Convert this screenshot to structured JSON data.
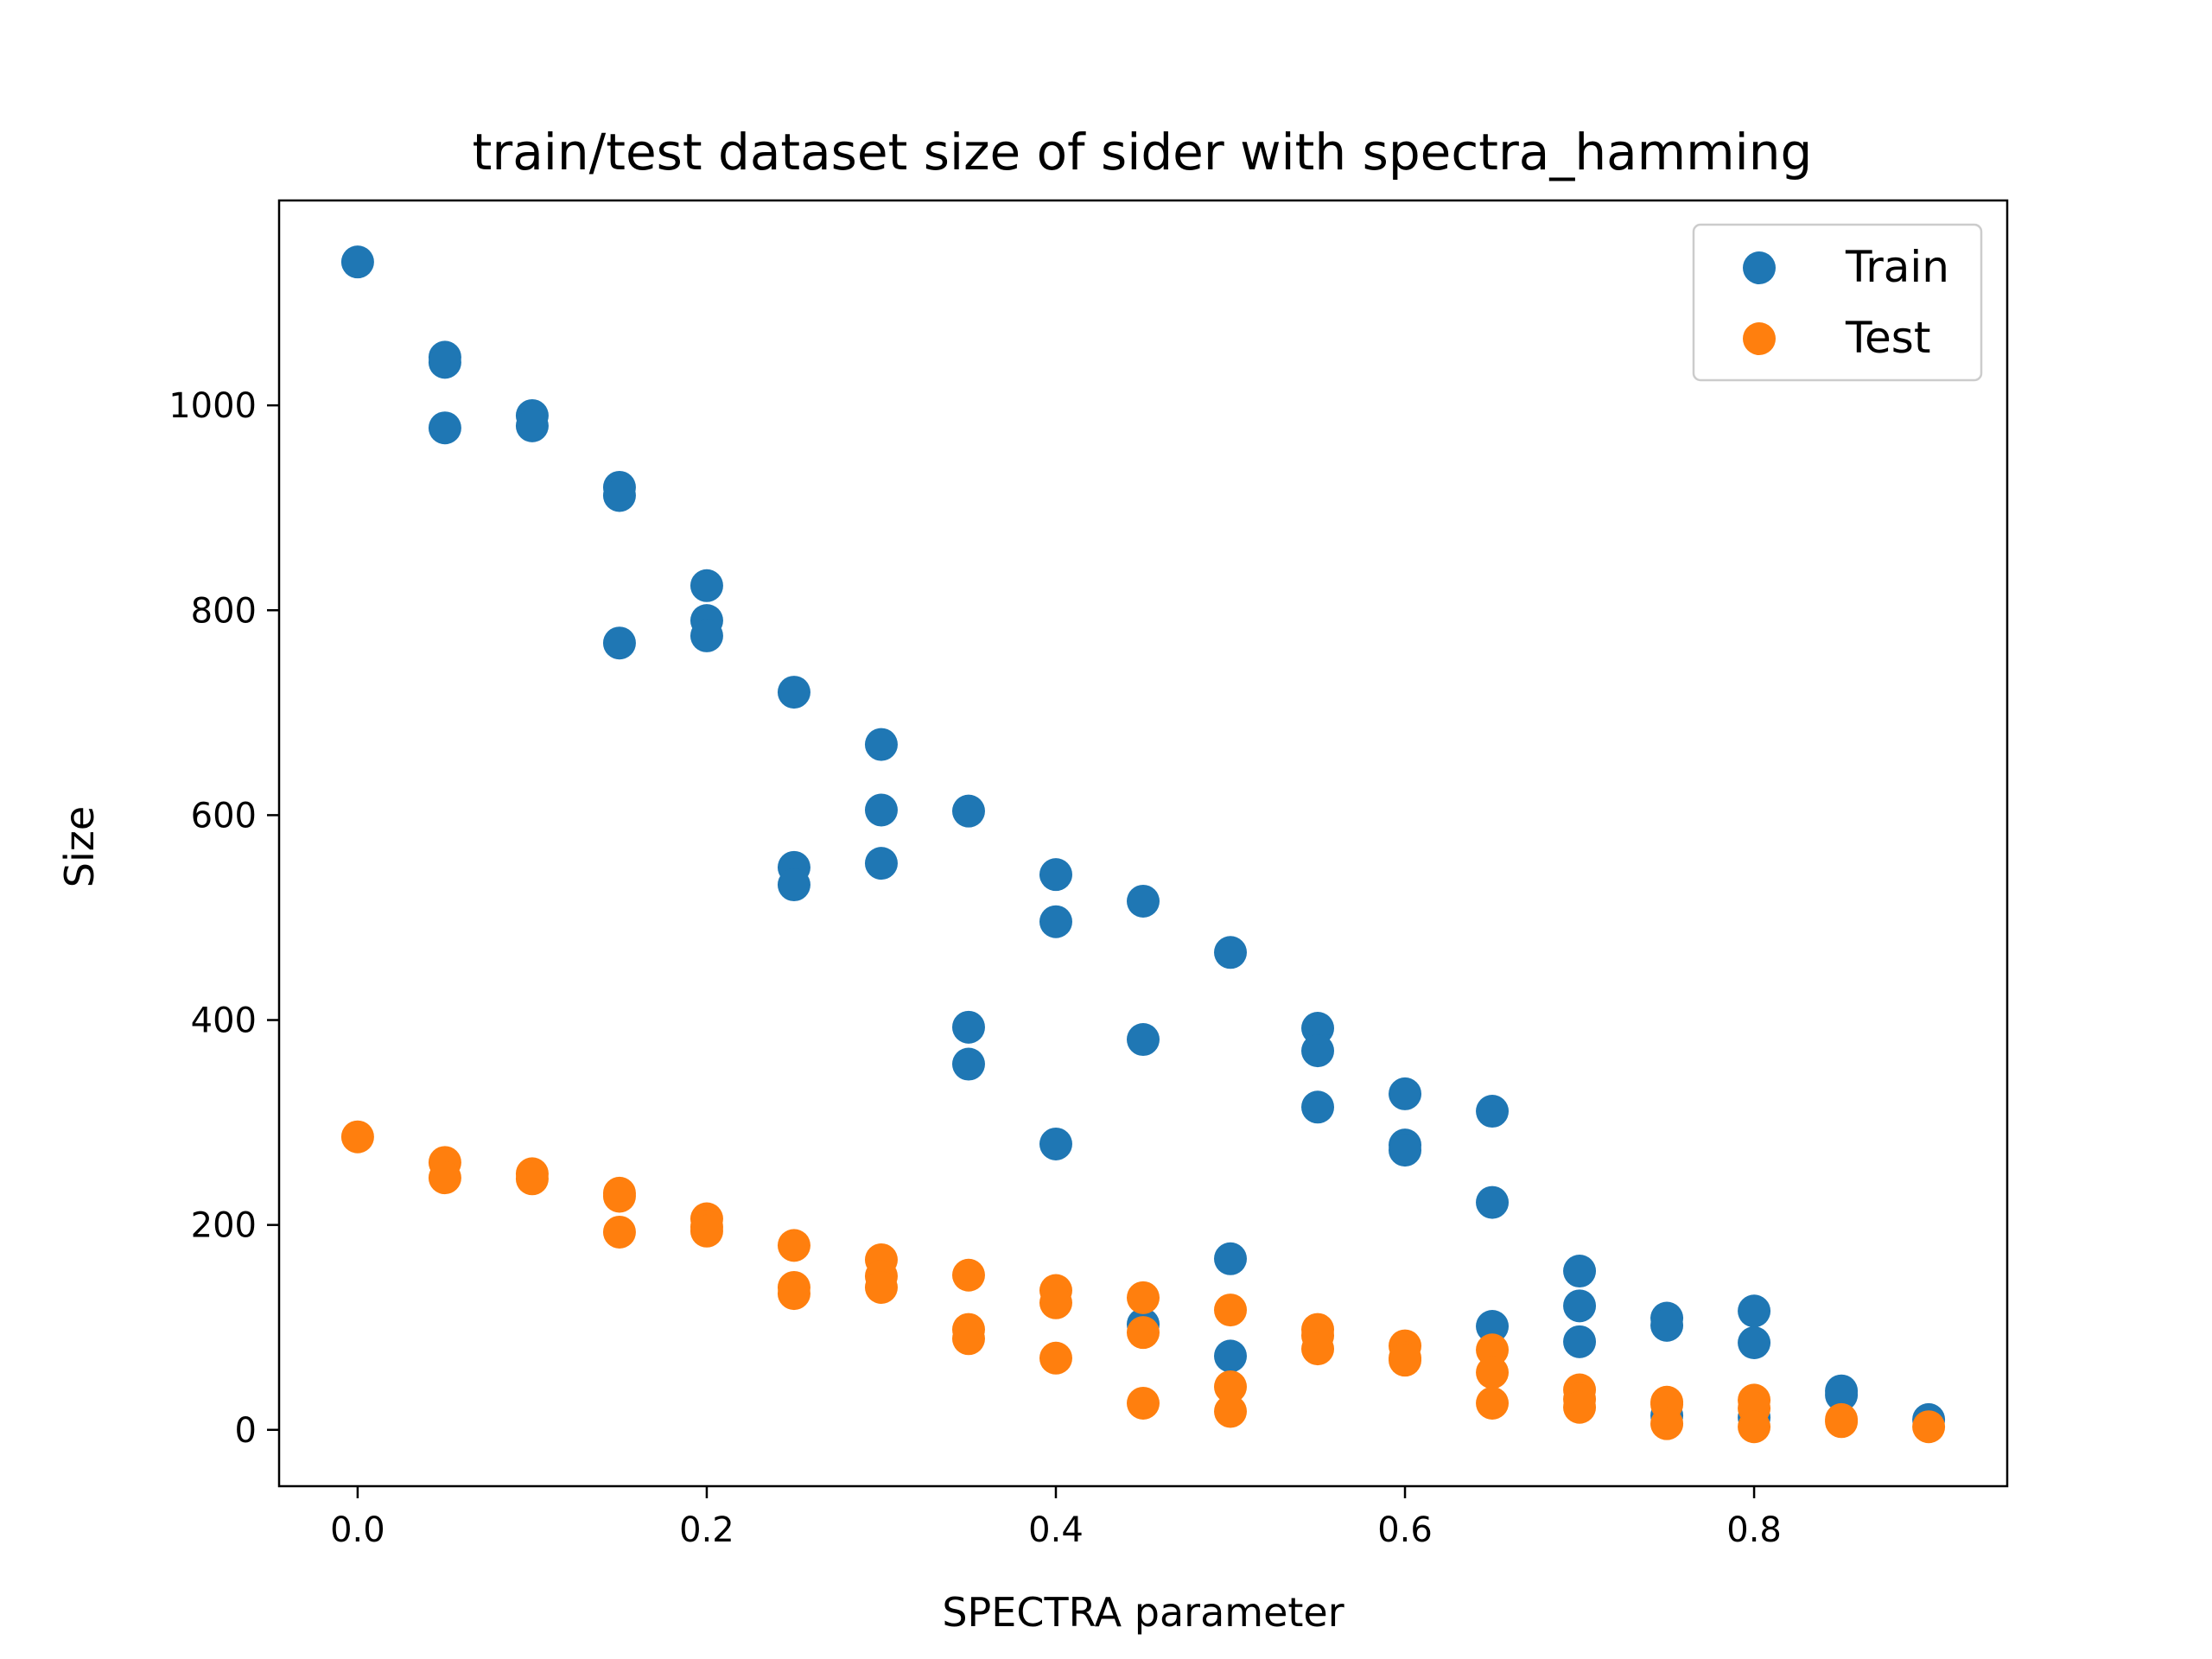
{
  "chart_data": {
    "type": "scatter",
    "title": "train/test dataset size of sider with spectra_hamming",
    "xlabel": "SPECTRA parameter",
    "ylabel": "Size",
    "xlim": [
      -0.045,
      0.945
    ],
    "ylim": [
      -55,
      1200
    ],
    "xticks": [
      0.0,
      0.2,
      0.4,
      0.6,
      0.8
    ],
    "xtick_labels": [
      "0.0",
      "0.2",
      "0.4",
      "0.6",
      "0.8"
    ],
    "yticks": [
      0,
      200,
      400,
      600,
      800,
      1000
    ],
    "ytick_labels": [
      "0",
      "200",
      "400",
      "600",
      "800",
      "1000"
    ],
    "grid": false,
    "legend": {
      "position": "top-right",
      "entries": [
        "Train",
        "Test"
      ]
    },
    "series": [
      {
        "name": "Train",
        "color": "#1f77b4",
        "points": [
          [
            0.0,
            1140
          ],
          [
            0.05,
            1047
          ],
          [
            0.05,
            1042
          ],
          [
            0.05,
            978
          ],
          [
            0.1,
            990
          ],
          [
            0.1,
            980
          ],
          [
            0.15,
            920
          ],
          [
            0.15,
            912
          ],
          [
            0.15,
            768
          ],
          [
            0.2,
            824
          ],
          [
            0.2,
            790
          ],
          [
            0.2,
            775
          ],
          [
            0.25,
            720
          ],
          [
            0.25,
            549
          ],
          [
            0.25,
            532
          ],
          [
            0.3,
            669
          ],
          [
            0.3,
            605
          ],
          [
            0.3,
            553
          ],
          [
            0.35,
            604
          ],
          [
            0.35,
            393
          ],
          [
            0.35,
            357
          ],
          [
            0.4,
            542
          ],
          [
            0.4,
            496
          ],
          [
            0.4,
            279
          ],
          [
            0.45,
            516
          ],
          [
            0.45,
            381
          ],
          [
            0.45,
            103
          ],
          [
            0.5,
            466
          ],
          [
            0.5,
            167
          ],
          [
            0.5,
            72
          ],
          [
            0.55,
            392
          ],
          [
            0.55,
            370
          ],
          [
            0.55,
            315
          ],
          [
            0.6,
            328
          ],
          [
            0.6,
            278
          ],
          [
            0.6,
            273
          ],
          [
            0.65,
            311
          ],
          [
            0.65,
            222
          ],
          [
            0.65,
            101
          ],
          [
            0.7,
            155
          ],
          [
            0.7,
            121
          ],
          [
            0.7,
            86
          ],
          [
            0.75,
            109
          ],
          [
            0.75,
            102
          ],
          [
            0.75,
            14
          ],
          [
            0.8,
            116
          ],
          [
            0.8,
            85
          ],
          [
            0.8,
            12
          ],
          [
            0.85,
            38
          ],
          [
            0.85,
            34
          ],
          [
            0.9,
            10
          ]
        ]
      },
      {
        "name": "Test",
        "color": "#ff7f0e",
        "points": [
          [
            0.0,
            286
          ],
          [
            0.05,
            261
          ],
          [
            0.05,
            246
          ],
          [
            0.1,
            250
          ],
          [
            0.1,
            245
          ],
          [
            0.15,
            231
          ],
          [
            0.15,
            228
          ],
          [
            0.15,
            193
          ],
          [
            0.2,
            206
          ],
          [
            0.2,
            198
          ],
          [
            0.2,
            194
          ],
          [
            0.25,
            180
          ],
          [
            0.25,
            139
          ],
          [
            0.25,
            133
          ],
          [
            0.3,
            166
          ],
          [
            0.3,
            150
          ],
          [
            0.3,
            139
          ],
          [
            0.35,
            151
          ],
          [
            0.35,
            98
          ],
          [
            0.35,
            89
          ],
          [
            0.4,
            136
          ],
          [
            0.4,
            124
          ],
          [
            0.4,
            70
          ],
          [
            0.45,
            129
          ],
          [
            0.45,
            95
          ],
          [
            0.45,
            26
          ],
          [
            0.5,
            117
          ],
          [
            0.5,
            42
          ],
          [
            0.5,
            18
          ],
          [
            0.55,
            98
          ],
          [
            0.55,
            92
          ],
          [
            0.55,
            79
          ],
          [
            0.6,
            82
          ],
          [
            0.6,
            70
          ],
          [
            0.6,
            68
          ],
          [
            0.65,
            78
          ],
          [
            0.65,
            56
          ],
          [
            0.65,
            26
          ],
          [
            0.7,
            39
          ],
          [
            0.7,
            30
          ],
          [
            0.7,
            22
          ],
          [
            0.75,
            27
          ],
          [
            0.75,
            25
          ],
          [
            0.75,
            6
          ],
          [
            0.8,
            29
          ],
          [
            0.8,
            21
          ],
          [
            0.8,
            3
          ],
          [
            0.85,
            10
          ],
          [
            0.85,
            8
          ],
          [
            0.9,
            3
          ]
        ]
      }
    ]
  }
}
